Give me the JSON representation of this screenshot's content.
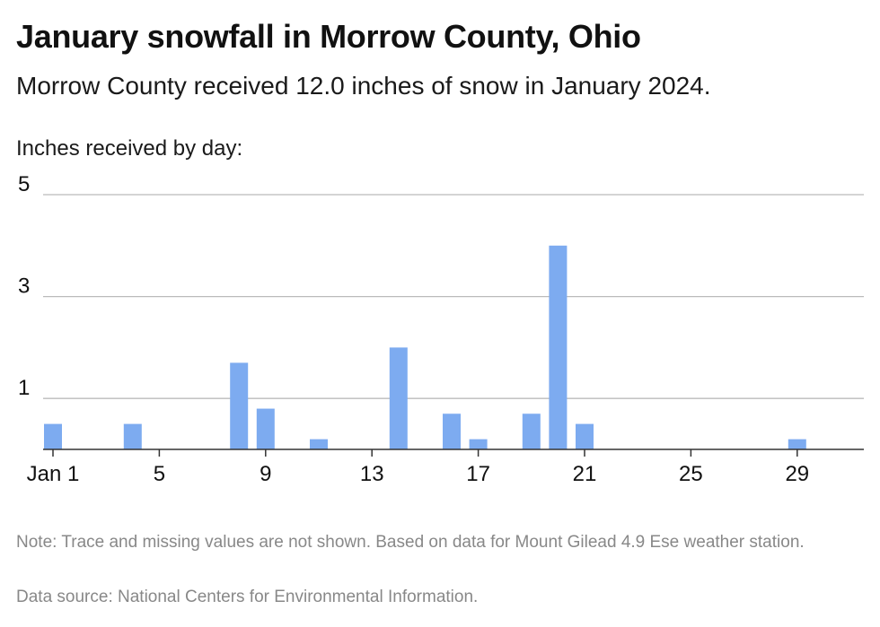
{
  "header": {
    "title": "January snowfall in Morrow County, Ohio",
    "subtitle": "Morrow County received 12.0 inches of snow in January 2024.",
    "axis_caption": "Inches received by day:"
  },
  "footer": {
    "note": "Note: Trace and missing values are not shown. Based on data for Mount Gilead 4.9 Ese weather station.",
    "source": "Data source: National Centers for Environmental Information."
  },
  "colors": {
    "bar": "#7dabf0",
    "grid": "#bbbbbb",
    "axis": "#333333",
    "text": "#111111"
  },
  "chart_data": {
    "type": "bar",
    "title": "January snowfall in Morrow County, Ohio",
    "ylabel": "Inches received by day:",
    "x": [
      1,
      4,
      8,
      9,
      11,
      14,
      16,
      17,
      19,
      20,
      21,
      29
    ],
    "values": [
      0.5,
      0.5,
      1.7,
      0.8,
      0.2,
      2.0,
      0.7,
      0.2,
      0.7,
      4.0,
      0.5,
      0.2
    ],
    "xlim": [
      1,
      31
    ],
    "ylim": [
      0,
      5
    ],
    "x_ticks": [
      1,
      5,
      9,
      13,
      17,
      21,
      25,
      29
    ],
    "x_tick_labels": [
      "Jan 1",
      "5",
      "9",
      "13",
      "17",
      "21",
      "25",
      "29"
    ],
    "y_ticks": [
      1,
      3,
      5
    ],
    "grid": true
  }
}
